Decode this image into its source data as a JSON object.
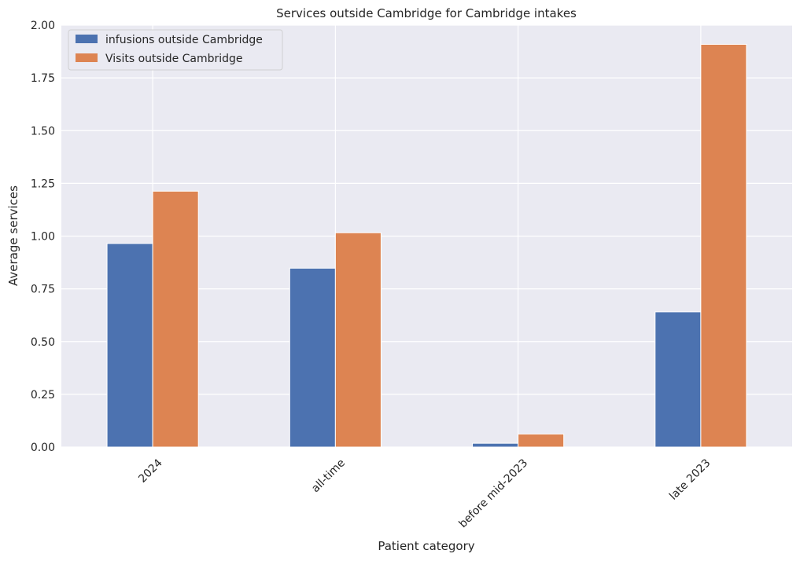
{
  "chart_data": {
    "type": "bar",
    "title": "Services outside Cambridge for Cambridge intakes",
    "xlabel": "Patient category",
    "ylabel": "Average services",
    "categories": [
      "2024",
      "all-time",
      "before mid-2023",
      "late 2023"
    ],
    "series": [
      {
        "name": "infusions outside Cambridge",
        "values": [
          0.965,
          0.848,
          0.018,
          0.641
        ],
        "color": "#4c72b0"
      },
      {
        "name": "Visits outside Cambridge",
        "values": [
          1.213,
          1.016,
          0.062,
          1.909
        ],
        "color": "#dd8452"
      }
    ],
    "ylim": [
      0,
      2.0
    ],
    "yticks": [
      "0.00",
      "0.25",
      "0.50",
      "0.75",
      "1.00",
      "1.25",
      "1.50",
      "1.75",
      "2.00"
    ],
    "grid": true,
    "legend_position": "top-left",
    "colors": {
      "plot_background": "#eaeaf2",
      "grid": "#ffffff"
    }
  }
}
